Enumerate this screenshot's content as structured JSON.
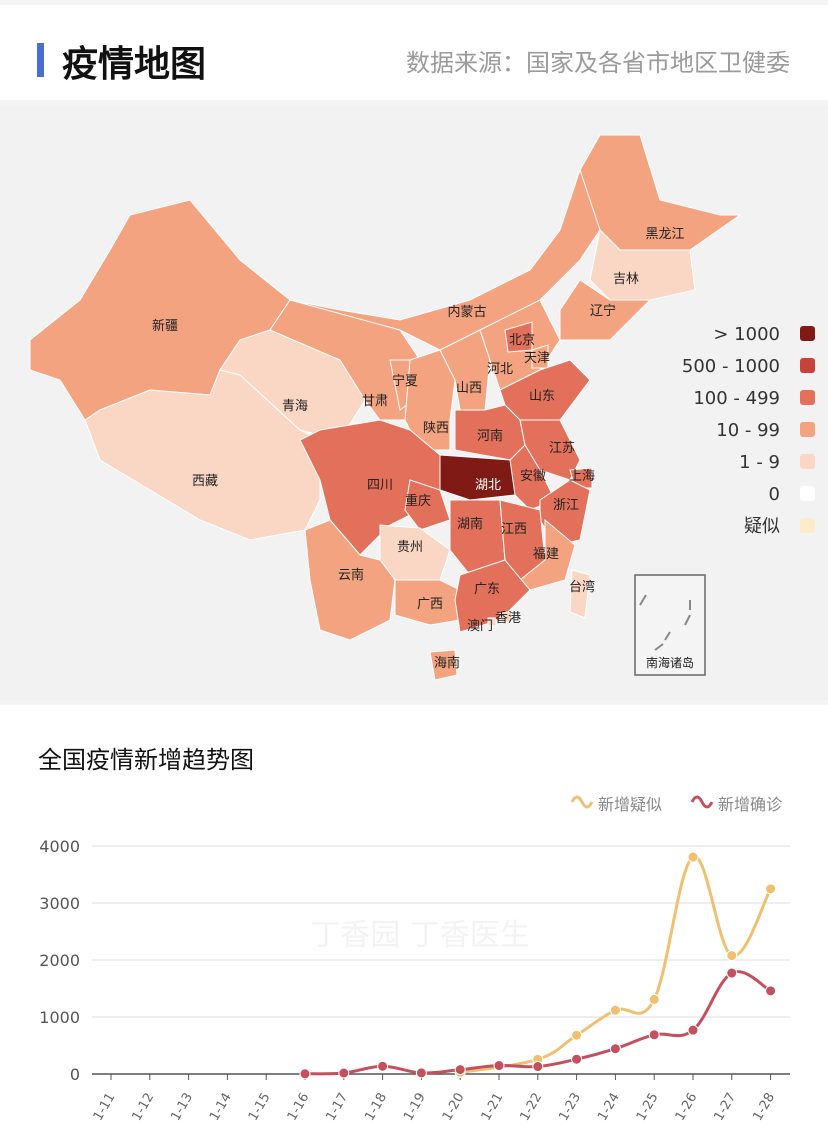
{
  "header": {
    "title": "疫情地图",
    "source": "数据来源：国家及各省市地区卫健委"
  },
  "map": {
    "legend": [
      {
        "label": "> 1000",
        "color": "#7f1b14"
      },
      {
        "label": "500 - 1000",
        "color": "#c8413a"
      },
      {
        "label": "100 - 499",
        "color": "#e3705a"
      },
      {
        "label": "10 - 99",
        "color": "#f3a37f"
      },
      {
        "label": "1 - 9",
        "color": "#fad7c4"
      },
      {
        "label": "0",
        "color": "#ffffff"
      },
      {
        "label": "疑似",
        "color": "#fdecc9"
      }
    ],
    "inset_label": "南海诸岛",
    "provinces": [
      {
        "name": "新疆",
        "level": 3
      },
      {
        "name": "西藏",
        "level": 4
      },
      {
        "name": "青海",
        "level": 4
      },
      {
        "name": "甘肃",
        "level": 3
      },
      {
        "name": "内蒙古",
        "level": 3
      },
      {
        "name": "黑龙江",
        "level": 3
      },
      {
        "name": "吉林",
        "level": 4
      },
      {
        "name": "辽宁",
        "level": 3
      },
      {
        "name": "宁夏",
        "level": 3
      },
      {
        "name": "陕西",
        "level": 3
      },
      {
        "name": "山西",
        "level": 3
      },
      {
        "name": "河北",
        "level": 3
      },
      {
        "name": "北京",
        "level": 2
      },
      {
        "name": "天津",
        "level": 3
      },
      {
        "name": "山东",
        "level": 2
      },
      {
        "name": "河南",
        "level": 2
      },
      {
        "name": "江苏",
        "level": 2
      },
      {
        "name": "安徽",
        "level": 2
      },
      {
        "name": "上海",
        "level": 2
      },
      {
        "name": "浙江",
        "level": 2
      },
      {
        "name": "湖北",
        "level": 0
      },
      {
        "name": "四川",
        "level": 2
      },
      {
        "name": "重庆",
        "level": 2
      },
      {
        "name": "湖南",
        "level": 2
      },
      {
        "name": "江西",
        "level": 2
      },
      {
        "name": "福建",
        "level": 3
      },
      {
        "name": "贵州",
        "level": 4
      },
      {
        "name": "云南",
        "level": 3
      },
      {
        "name": "广西",
        "level": 3
      },
      {
        "name": "广东",
        "level": 2
      },
      {
        "name": "海南",
        "level": 3
      },
      {
        "name": "台湾",
        "level": 4
      },
      {
        "name": "香港",
        "level": 4
      },
      {
        "name": "澳门",
        "level": 4
      }
    ]
  },
  "chart_data": {
    "type": "line",
    "title": "全国疫情新增趋势图",
    "categories": [
      "1-11",
      "1-12",
      "1-13",
      "1-14",
      "1-15",
      "1-16",
      "1-17",
      "1-18",
      "1-19",
      "1-20",
      "1-21",
      "1-22",
      "1-23",
      "1-24",
      "1-25",
      "1-26",
      "1-27",
      "1-28"
    ],
    "yticks": [
      0,
      1000,
      2000,
      3000,
      4000
    ],
    "ylim": [
      0,
      4000
    ],
    "grid": true,
    "legend_position": "top-right",
    "series": [
      {
        "name": "新增疑似",
        "color": "#f0c070",
        "values": [
          null,
          null,
          null,
          null,
          null,
          null,
          null,
          null,
          null,
          27,
          null,
          257,
          680,
          1118,
          1309,
          3806,
          2077,
          3248
        ]
      },
      {
        "name": "新增确诊",
        "color": "#c4505e",
        "values": [
          null,
          null,
          null,
          null,
          null,
          4,
          17,
          136,
          19,
          77,
          149,
          131,
          259,
          444,
          688,
          769,
          1771,
          1459
        ]
      }
    ],
    "watermark": "丁香园 丁香医生"
  }
}
